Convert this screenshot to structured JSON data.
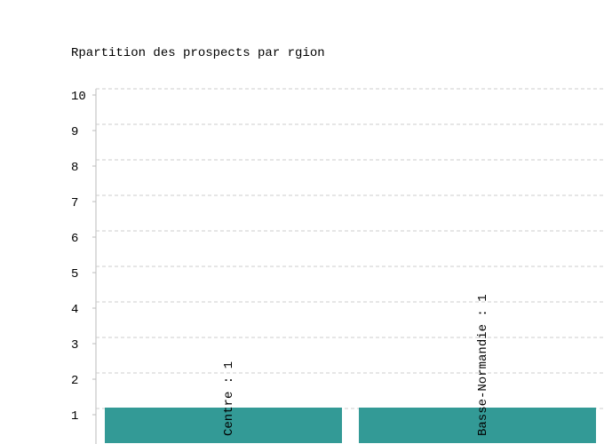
{
  "chart_data": {
    "type": "bar",
    "title": "Rpartition des prospects par rgion",
    "categories": [
      "Centre",
      "Basse-Normandie"
    ],
    "values": [
      1,
      1
    ],
    "value_labels": [
      "Centre : 1",
      "Basse-Normandie : 1"
    ],
    "color": "#339a96",
    "ylim": [
      0,
      10
    ],
    "yticks": [
      1,
      2,
      3,
      4,
      5,
      6,
      7,
      8,
      9,
      10
    ],
    "grid": true
  }
}
